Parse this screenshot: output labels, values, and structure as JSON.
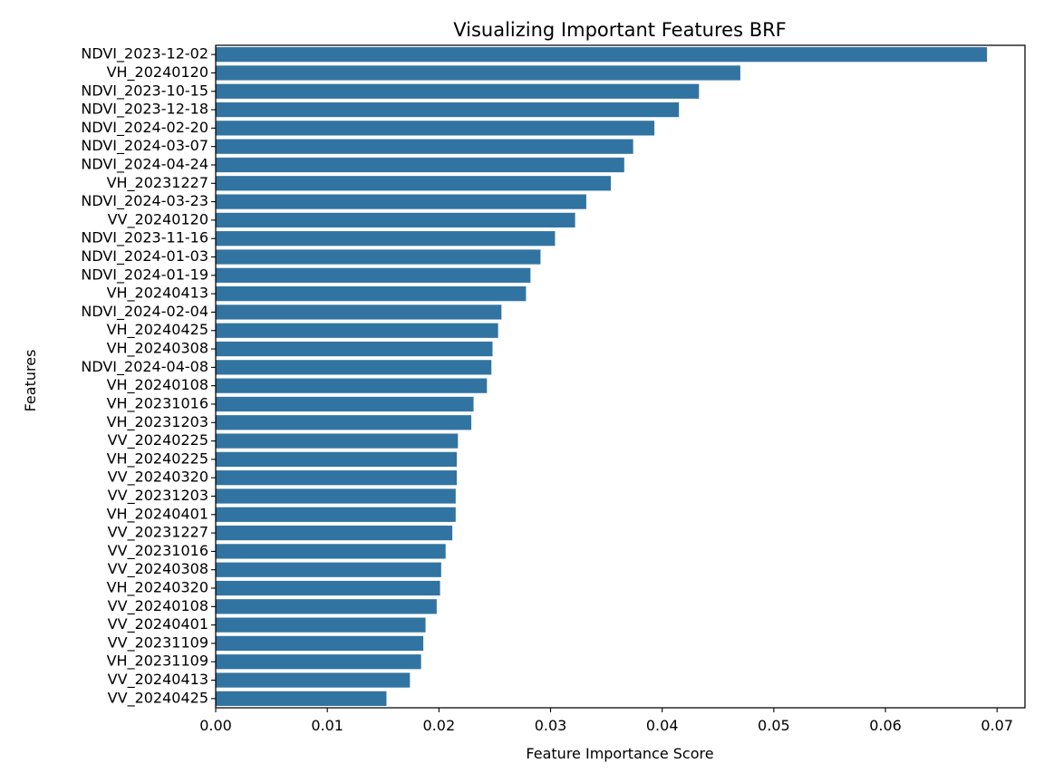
{
  "chart_data": {
    "type": "bar",
    "orientation": "horizontal",
    "title": "Visualizing Important Features BRF",
    "xlabel": "Feature Importance Score",
    "ylabel": "Features",
    "bar_color": "#3274a1",
    "xlim": [
      0,
      0.0725
    ],
    "xticks": [
      0.0,
      0.01,
      0.02,
      0.03,
      0.04,
      0.05,
      0.06,
      0.07
    ],
    "xtick_labels": [
      "0.00",
      "0.01",
      "0.02",
      "0.03",
      "0.04",
      "0.05",
      "0.06",
      "0.07"
    ],
    "grid": false,
    "categories": [
      "NDVI_2023-12-02",
      "VH_20240120",
      "NDVI_2023-10-15",
      "NDVI_2023-12-18",
      "NDVI_2024-02-20",
      "NDVI_2024-03-07",
      "NDVI_2024-04-24",
      "VH_20231227",
      "NDVI_2024-03-23",
      "VV_20240120",
      "NDVI_2023-11-16",
      "NDVI_2024-01-03",
      "NDVI_2024-01-19",
      "VH_20240413",
      "NDVI_2024-02-04",
      "VH_20240425",
      "VH_20240308",
      "NDVI_2024-04-08",
      "VH_20240108",
      "VH_20231016",
      "VH_20231203",
      "VV_20240225",
      "VH_20240225",
      "VV_20240320",
      "VV_20231203",
      "VH_20240401",
      "VV_20231227",
      "VV_20231016",
      "VV_20240308",
      "VH_20240320",
      "VV_20240108",
      "VV_20240401",
      "VV_20231109",
      "VH_20231109",
      "VV_20240413",
      "VV_20240425"
    ],
    "values": [
      0.0691,
      0.047,
      0.0433,
      0.0415,
      0.0393,
      0.0374,
      0.0366,
      0.0354,
      0.0332,
      0.0322,
      0.0304,
      0.0291,
      0.0282,
      0.0278,
      0.0256,
      0.0253,
      0.0248,
      0.0247,
      0.0243,
      0.0231,
      0.0229,
      0.0217,
      0.0216,
      0.0216,
      0.0215,
      0.0215,
      0.0212,
      0.0206,
      0.0202,
      0.0201,
      0.0198,
      0.0188,
      0.0186,
      0.0184,
      0.0174,
      0.0153
    ]
  }
}
